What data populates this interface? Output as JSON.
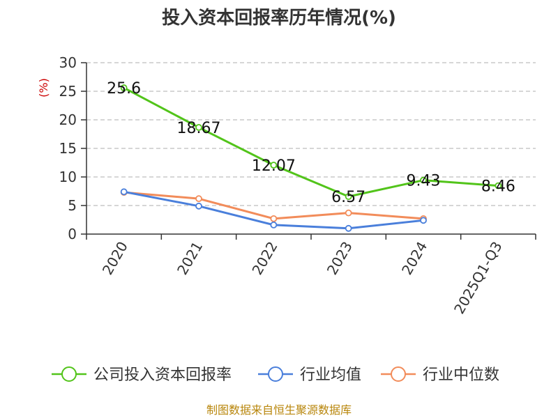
{
  "chart_data": {
    "type": "line",
    "title": "投入资本回报率历年情况(%)",
    "ylabel": "(%)",
    "xlabel": "",
    "categories": [
      "2020",
      "2021",
      "2022",
      "2023",
      "2024",
      "2025Q1-Q3"
    ],
    "ylim": [
      0,
      30
    ],
    "yticks": [
      0,
      5,
      10,
      15,
      20,
      25,
      30
    ],
    "grid": true,
    "legend_position": "bottom",
    "series": [
      {
        "name": "公司投入资本回报率",
        "color": "#52c41a",
        "values": [
          25.6,
          18.67,
          12.07,
          6.57,
          9.43,
          8.46
        ],
        "labels": [
          "25.6",
          "18.67",
          "12.07",
          "6.57",
          "9.43",
          "8.46"
        ]
      },
      {
        "name": "行业均值",
        "color": "#4a7fdb",
        "values": [
          7.4,
          4.9,
          1.6,
          1.0,
          2.4,
          null
        ]
      },
      {
        "name": "行业中位数",
        "color": "#f28c5a",
        "values": [
          7.3,
          6.2,
          2.7,
          3.7,
          2.7,
          null
        ]
      }
    ]
  },
  "source": "制图数据来自恒生聚源数据库"
}
